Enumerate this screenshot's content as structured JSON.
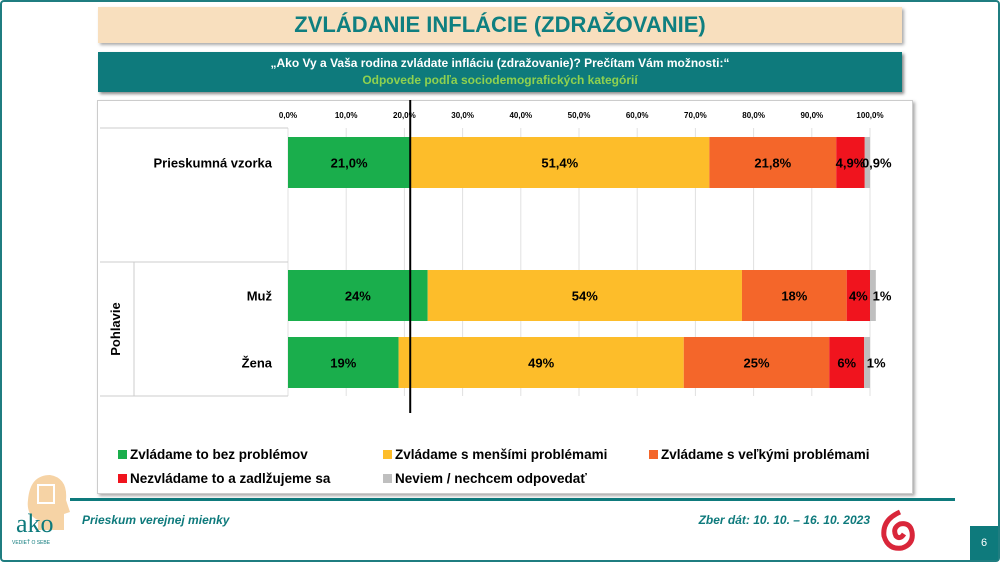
{
  "title": "ZVLÁDANIE INFLÁCIE (ZDRAŽOVANIE)",
  "question": "„Ako Vy a Vaša rodina zvládate infláciu (zdražovanie)? Prečítam Vám možnosti:“",
  "subtitle": "Odpovede podľa sociodemografických kategórií",
  "footer": {
    "left": "Prieskum verejnej mienky",
    "right": "Zber dát: 10. 10. – 16. 10. 2023",
    "page": "6",
    "logo": "ako",
    "logo_tagline": "VEDIEŤ O SEBE"
  },
  "chart_data": {
    "type": "bar",
    "orientation": "horizontal",
    "stacked": true,
    "xlim": [
      0,
      100
    ],
    "ticks": [
      "0,0%",
      "10,0%",
      "20,0%",
      "30,0%",
      "40,0%",
      "50,0%",
      "60,0%",
      "70,0%",
      "80,0%",
      "90,0%",
      "100,0%"
    ],
    "reference_line": 21.0,
    "group_label": "Pohlavie",
    "categories": [
      "Prieskumná vzorka",
      "Muž",
      "Žena"
    ],
    "series": [
      {
        "name": "Zvládame to bez problémov",
        "color": "#1aae4c",
        "values": [
          21.0,
          24,
          19
        ],
        "labels": [
          "21,0%",
          "24%",
          "19%"
        ]
      },
      {
        "name": "Zvládame s menšími problémami",
        "color": "#fdbd2a",
        "values": [
          51.4,
          54,
          49
        ],
        "labels": [
          "51,4%",
          "54%",
          "49%"
        ]
      },
      {
        "name": "Zvládame s veľkými problémami",
        "color": "#f4662a",
        "values": [
          21.8,
          18,
          25
        ],
        "labels": [
          "21,8%",
          "18%",
          "25%"
        ]
      },
      {
        "name": "Nezvládame to a zadlžujeme sa",
        "color": "#f0141e",
        "values": [
          4.9,
          4,
          6
        ],
        "labels": [
          "4,9%",
          "4%",
          "6%"
        ]
      },
      {
        "name": "Neviem / nechcem odpovedať",
        "color": "#bfbfbf",
        "values": [
          0.9,
          1,
          1
        ],
        "labels": [
          "0,9%",
          "1%",
          "1%"
        ]
      }
    ]
  }
}
